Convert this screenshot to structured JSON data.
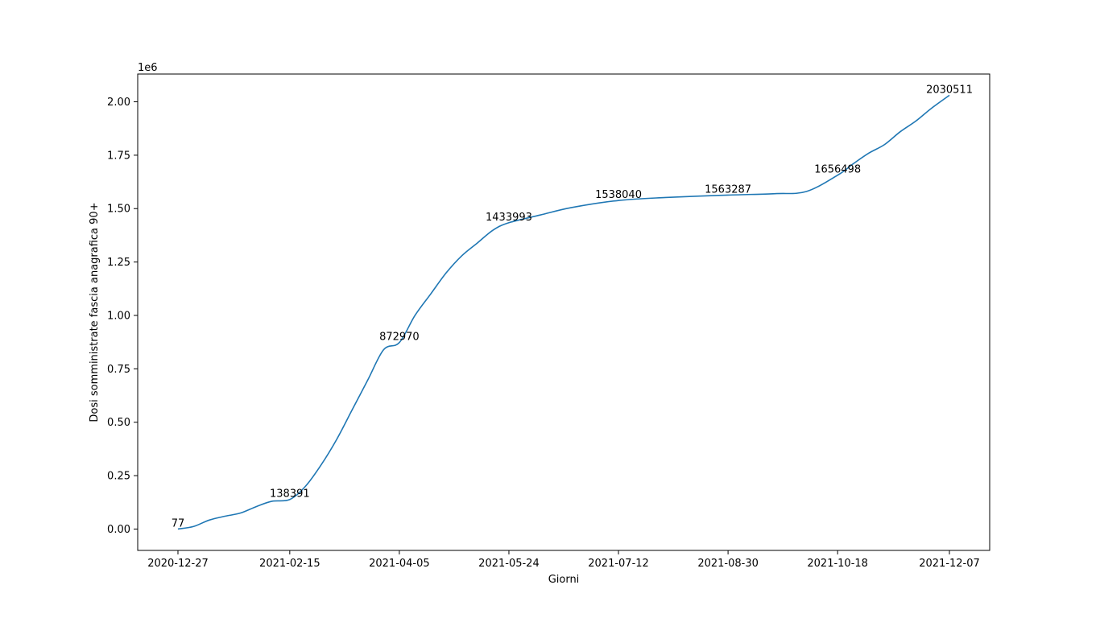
{
  "chart_data": {
    "type": "line",
    "title": "",
    "xlabel": "Giorni",
    "ylabel": "Dosi somministrate fascia anagrafica 90+",
    "y_offset_label": "1e6",
    "xlim": [
      "2020-12-09",
      "2021-12-25"
    ],
    "ylim": [
      -100000,
      2130000
    ],
    "grid": false,
    "x_ticks": [
      "2020-12-27",
      "2021-02-15",
      "2021-04-05",
      "2021-05-24",
      "2021-07-12",
      "2021-08-30",
      "2021-10-18",
      "2021-12-07"
    ],
    "y_ticks": [
      {
        "value": 0,
        "label": "0.00"
      },
      {
        "value": 250000,
        "label": "0.25"
      },
      {
        "value": 500000,
        "label": "0.50"
      },
      {
        "value": 750000,
        "label": "0.75"
      },
      {
        "value": 1000000,
        "label": "1.00"
      },
      {
        "value": 1250000,
        "label": "1.25"
      },
      {
        "value": 1500000,
        "label": "1.50"
      },
      {
        "value": 1750000,
        "label": "1.75"
      },
      {
        "value": 2000000,
        "label": "2.00"
      }
    ],
    "series": [
      {
        "color": "#1f77b4",
        "x": [
          "2020-12-27",
          "2021-01-03",
          "2021-01-10",
          "2021-01-17",
          "2021-01-24",
          "2021-01-31",
          "2021-02-07",
          "2021-02-15",
          "2021-02-22",
          "2021-03-01",
          "2021-03-08",
          "2021-03-15",
          "2021-03-22",
          "2021-03-29",
          "2021-04-05",
          "2021-04-12",
          "2021-04-19",
          "2021-04-26",
          "2021-05-03",
          "2021-05-10",
          "2021-05-17",
          "2021-05-24",
          "2021-06-07",
          "2021-06-21",
          "2021-07-12",
          "2021-08-02",
          "2021-08-30",
          "2021-09-20",
          "2021-10-04",
          "2021-10-18",
          "2021-10-25",
          "2021-11-01",
          "2021-11-08",
          "2021-11-15",
          "2021-11-22",
          "2021-11-29",
          "2021-12-07"
        ],
        "y": [
          77,
          12000,
          42000,
          60000,
          75000,
          105000,
          130000,
          138391,
          200000,
          300000,
          420000,
          560000,
          700000,
          840000,
          872970,
          1000000,
          1100000,
          1200000,
          1280000,
          1340000,
          1400000,
          1433993,
          1470000,
          1505000,
          1538040,
          1552000,
          1563287,
          1570000,
          1580000,
          1656498,
          1710000,
          1760000,
          1800000,
          1860000,
          1910000,
          1970000,
          2030511
        ]
      }
    ],
    "annotations": [
      {
        "x": "2020-12-27",
        "y": 77,
        "text": "77"
      },
      {
        "x": "2021-02-15",
        "y": 138391,
        "text": "138391"
      },
      {
        "x": "2021-04-05",
        "y": 872970,
        "text": "872970"
      },
      {
        "x": "2021-05-24",
        "y": 1433993,
        "text": "1433993"
      },
      {
        "x": "2021-07-12",
        "y": 1538040,
        "text": "1538040"
      },
      {
        "x": "2021-08-30",
        "y": 1563287,
        "text": "1563287"
      },
      {
        "x": "2021-10-18",
        "y": 1656498,
        "text": "1656498"
      },
      {
        "x": "2021-12-07",
        "y": 2030511,
        "text": "2030511"
      }
    ]
  }
}
